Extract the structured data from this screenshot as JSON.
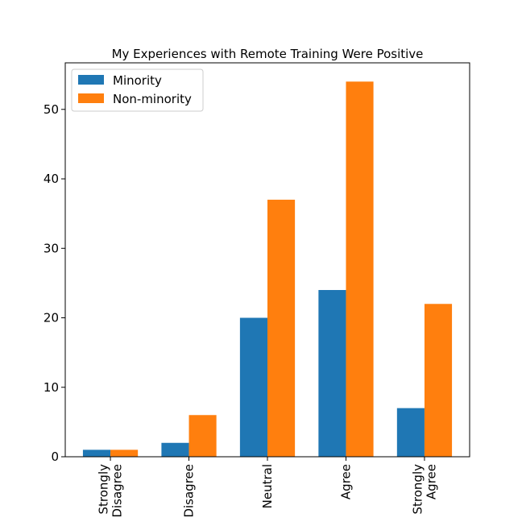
{
  "chart_data": {
    "type": "bar",
    "title": "My Experiences with Remote Training Were Positive",
    "xlabel": "",
    "ylabel": "",
    "categories": [
      [
        "Strongly",
        "Disagree"
      ],
      [
        "Disagree"
      ],
      [
        "Neutral"
      ],
      [
        "Agree"
      ],
      [
        "Strongly",
        "Agree"
      ]
    ],
    "series": [
      {
        "name": "Minority",
        "color": "#1f77b4",
        "values": [
          1,
          2,
          20,
          24,
          7
        ]
      },
      {
        "name": "Non-minority",
        "color": "#ff7f0e",
        "values": [
          1,
          6,
          37,
          54,
          22
        ]
      }
    ],
    "ylim": [
      0,
      56.7
    ],
    "yticks": [
      0,
      10,
      20,
      30,
      40,
      50
    ],
    "legend_position": "top-left",
    "grid": false,
    "x_tick_rotation": "vertical"
  }
}
